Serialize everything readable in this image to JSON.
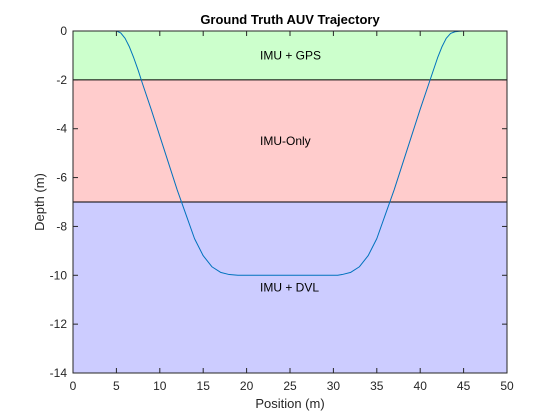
{
  "chart_data": {
    "type": "line",
    "title": "Ground Truth AUV Trajectory",
    "xlabel": "Position (m)",
    "ylabel": "Depth (m)",
    "xlim": [
      0,
      50
    ],
    "ylim": [
      -14,
      0
    ],
    "xticks": [
      "0",
      "5",
      "10",
      "15",
      "20",
      "25",
      "30",
      "35",
      "40",
      "45",
      "50"
    ],
    "yticks": [
      "0",
      "-2",
      "-4",
      "-6",
      "-8",
      "-10",
      "-12",
      "-14"
    ],
    "grid": false,
    "regions": [
      {
        "label": "IMU + GPS",
        "y_from": 0,
        "y_to": -2,
        "color": "#ccffcc",
        "label_y": -1
      },
      {
        "label": "IMU-Only",
        "y_from": -2,
        "y_to": -7,
        "color": "#ffcccc",
        "label_y": -4.5
      },
      {
        "label": "IMU + DVL",
        "y_from": -7,
        "y_to": -14,
        "color": "#ccccff",
        "label_y": -10.5
      }
    ],
    "series": [
      {
        "color": "#0072bd",
        "x": [
          5,
          5.5,
          6,
          6.5,
          7,
          7.5,
          8,
          9,
          10,
          11,
          12,
          13,
          14,
          15,
          16,
          17,
          18,
          19,
          19.5,
          20,
          25,
          30,
          30.5,
          31,
          32,
          33,
          34,
          35,
          36,
          37,
          38,
          39,
          40,
          41,
          42,
          42.5,
          43,
          43.5,
          44,
          44.5,
          45
        ],
        "y": [
          0,
          -0.08,
          -0.3,
          -0.65,
          -1.1,
          -1.6,
          -2.15,
          -3.2,
          -4.3,
          -5.4,
          -6.5,
          -7.5,
          -8.5,
          -9.2,
          -9.65,
          -9.88,
          -9.97,
          -10,
          -10,
          -10,
          -10,
          -10,
          -10,
          -9.97,
          -9.88,
          -9.65,
          -9.2,
          -8.5,
          -7.5,
          -6.5,
          -5.4,
          -4.3,
          -3.2,
          -2.15,
          -1.1,
          -0.65,
          -0.3,
          -0.1,
          -0.03,
          -0.01,
          0
        ]
      }
    ]
  }
}
